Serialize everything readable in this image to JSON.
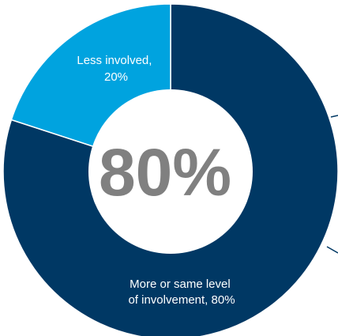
{
  "chart_data": {
    "type": "pie",
    "style": "donut",
    "center_label": "80%",
    "slices": [
      {
        "label_lines": [
          "More or same level",
          "of involvement, 80%"
        ],
        "value": 80,
        "color": "#003864"
      },
      {
        "label_lines": [
          "Less involved,",
          "20%"
        ],
        "value": 20,
        "color": "#00a3df"
      }
    ]
  }
}
